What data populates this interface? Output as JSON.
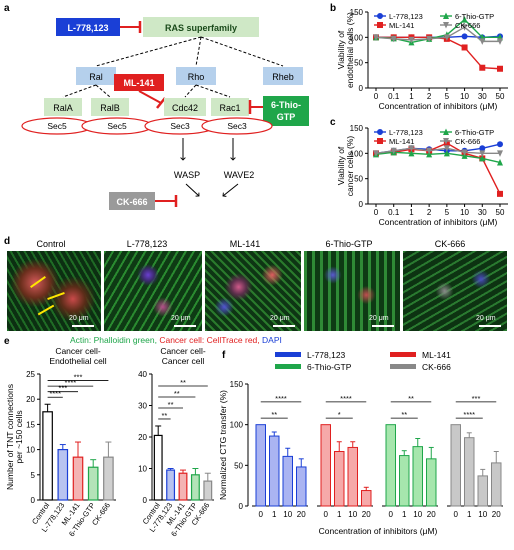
{
  "panel_labels": {
    "a": "a",
    "b": "b",
    "c": "c",
    "d": "d",
    "e": "e",
    "f": "f"
  },
  "diagram": {
    "l778": "L-778,123",
    "ras": "RAS superfamily",
    "ral": "Ral",
    "rho": "Rho",
    "rheb": "Rheb",
    "ml141": "ML-141",
    "rala": "RalA",
    "ralb": "RalB",
    "cdc42": "Cdc42",
    "rac1": "Rac1",
    "thio1": "6-Thio-",
    "thio2": "GTP",
    "sec5a": "Sec5",
    "sec5b": "Sec5",
    "sec3a": "Sec3",
    "sec3b": "Sec3",
    "wasp": "WASP",
    "wave2": "WAVE2",
    "ck666": "CK-666",
    "colors": {
      "red": "#e02020",
      "blue": "#1a3fd6",
      "green": "#1fa64a",
      "gray": "#9a9a9a",
      "light_blue": "#b5d0ec",
      "light_green": "#cfe8c6"
    }
  },
  "microscopy": {
    "titles": [
      "Control",
      "L-778,123",
      "ML-141",
      "6-Thio-GTP",
      "CK-666"
    ],
    "scalebar": "20 μm",
    "legend": {
      "actin": "Actin: Phalloidin green,",
      "cancer": "Cancer cell: CellTrace red,",
      "dapi": "DAPI"
    }
  },
  "chart_data": [
    {
      "id": "b",
      "type": "line",
      "ylabel": "Viability of endothelial cells (%)",
      "xlabel": "Concentration of inhibitors (μM)",
      "categories": [
        "0",
        "0.1",
        "1",
        "2",
        "5",
        "10",
        "30",
        "50"
      ],
      "ylim": [
        0,
        150
      ],
      "yticks": [
        0,
        50,
        100,
        150
      ],
      "series": [
        {
          "name": "L-778,123",
          "color": "#1a3fd6",
          "marker": "circle",
          "values": [
            100,
            100,
            100,
            100,
            100,
            102,
            100,
            102
          ]
        },
        {
          "name": "ML-141",
          "color": "#e02020",
          "marker": "square",
          "values": [
            100,
            100,
            100,
            100,
            97,
            80,
            40,
            38
          ]
        },
        {
          "name": "6-Thio-GTP",
          "color": "#1fa64a",
          "marker": "triangle",
          "values": [
            100,
            98,
            90,
            97,
            105,
            135,
            100,
            100
          ]
        },
        {
          "name": "CK-666",
          "color": "#888888",
          "marker": "triangle-down",
          "values": [
            100,
            97,
            95,
            97,
            100,
            120,
            92,
            92
          ]
        }
      ]
    },
    {
      "id": "c",
      "type": "line",
      "ylabel": "Viability of cancer cells (%)",
      "xlabel": "Concentration of inhibitors (μM)",
      "categories": [
        "0",
        "0.1",
        "1",
        "2",
        "5",
        "10",
        "30",
        "50"
      ],
      "ylim": [
        0,
        150
      ],
      "yticks": [
        0,
        50,
        100,
        150
      ],
      "series": [
        {
          "name": "L-778,123",
          "color": "#1a3fd6",
          "marker": "circle",
          "values": [
            100,
            105,
            110,
            108,
            105,
            105,
            110,
            118
          ]
        },
        {
          "name": "ML-141",
          "color": "#e02020",
          "marker": "square",
          "values": [
            100,
            102,
            108,
            105,
            120,
            100,
            90,
            20
          ]
        },
        {
          "name": "6-Thio-GTP",
          "color": "#1fa64a",
          "marker": "triangle",
          "values": [
            98,
            102,
            100,
            98,
            100,
            95,
            90,
            82
          ]
        },
        {
          "name": "CK-666",
          "color": "#888888",
          "marker": "triangle-down",
          "values": [
            100,
            105,
            110,
            105,
            110,
            102,
            100,
            100
          ]
        }
      ]
    },
    {
      "id": "e1",
      "type": "bar",
      "title1": "Cancer cell-",
      "title2": "Endothelial cell",
      "ylabel1": "Number of TNT connections",
      "ylabel2": "per ~150 cells",
      "categories": [
        "Control",
        "L-778,123",
        "ML-141",
        "6-Thio-GTP",
        "CK-666"
      ],
      "values": [
        17.5,
        10,
        8.5,
        6.5,
        8.5
      ],
      "errors": [
        1.5,
        1,
        3,
        1.5,
        3
      ],
      "ylim": [
        0,
        25
      ],
      "yticks": [
        0,
        5,
        10,
        15,
        20,
        25
      ],
      "fills": [
        "#ffffff",
        "#b8c3f0",
        "#f4b3b3",
        "#b3e3b8",
        "#d0d0d0"
      ],
      "strokes": [
        "#000000",
        "#1a3fd6",
        "#e02020",
        "#1fa64a",
        "#888888"
      ],
      "sig": [
        {
          "label": "****",
          "to": 1
        },
        {
          "label": "***",
          "to": 2
        },
        {
          "label": "****",
          "to": 3
        },
        {
          "label": "***",
          "to": 4
        }
      ]
    },
    {
      "id": "e2",
      "type": "bar",
      "title1": "Cancer cell-",
      "title2": "Cancer cell",
      "categories": [
        "Control",
        "L-778,123",
        "ML-141",
        "6-Thio-GTP",
        "CK-666"
      ],
      "values": [
        20.5,
        9.5,
        8.5,
        8,
        6
      ],
      "errors": [
        3,
        0.5,
        1,
        2,
        2.5
      ],
      "ylim": [
        0,
        40
      ],
      "yticks": [
        0,
        10,
        20,
        30,
        40
      ],
      "fills": [
        "#ffffff",
        "#b8c3f0",
        "#f4b3b3",
        "#b3e3b8",
        "#d0d0d0"
      ],
      "strokes": [
        "#000000",
        "#1a3fd6",
        "#e02020",
        "#1fa64a",
        "#888888"
      ],
      "sig": [
        {
          "label": "**",
          "to": 1
        },
        {
          "label": "**",
          "to": 2
        },
        {
          "label": "**",
          "to": 3
        },
        {
          "label": "**",
          "to": 4
        }
      ]
    },
    {
      "id": "f",
      "type": "bar",
      "ylabel": "Normalized CTG transfer (%)",
      "xlabel": "Concentration of inhibitors (μM)",
      "ticklabels": [
        "0",
        "1",
        "10",
        "20"
      ],
      "ylim": [
        0,
        150
      ],
      "yticks": [
        0,
        50,
        100,
        150
      ],
      "groups": [
        {
          "name": "L-778,123",
          "fill": "#aab4f2",
          "stroke": "#1a3fd6",
          "values": [
            100,
            86,
            61,
            48
          ],
          "errors": [
            0,
            5,
            10,
            10
          ],
          "sig": [
            "**",
            "****"
          ]
        },
        {
          "name": "ML-141",
          "fill": "#f6a9a9",
          "stroke": "#e02020",
          "values": [
            100,
            67,
            72,
            19
          ],
          "errors": [
            0,
            12,
            7,
            4
          ],
          "sig": [
            "*",
            "****"
          ]
        },
        {
          "name": "6-Thio-GTP",
          "fill": "#a6e6ad",
          "stroke": "#1fa64a",
          "values": [
            100,
            62,
            73,
            58
          ],
          "errors": [
            0,
            6,
            10,
            14
          ],
          "sig": [
            "**",
            "**"
          ]
        },
        {
          "name": "CK-666",
          "fill": "#c8c8c8",
          "stroke": "#888888",
          "values": [
            100,
            84,
            37,
            53
          ],
          "errors": [
            0,
            6,
            8,
            14
          ],
          "sig": [
            "****",
            "***"
          ]
        }
      ]
    }
  ]
}
